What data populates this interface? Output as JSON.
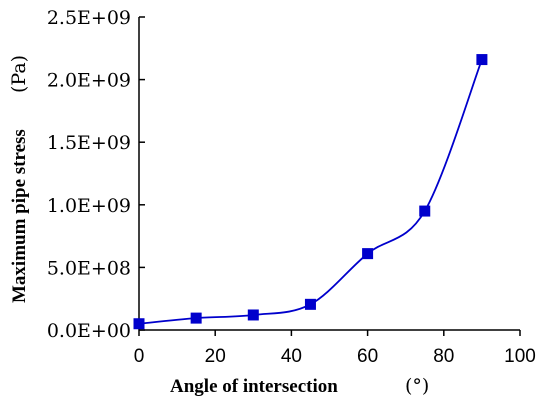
{
  "chart_data": {
    "type": "line",
    "title": "",
    "xlabel": "Angle of intersection",
    "xunit": "(°)",
    "ylabel": "Maximum pipe stress",
    "yunit": "(Pa)",
    "xlim": [
      0,
      100
    ],
    "ylim": [
      0,
      2500000000
    ],
    "x_ticks": [
      0,
      20,
      40,
      60,
      80,
      100
    ],
    "x_tick_labels": [
      "0",
      "20",
      "40",
      "60",
      "80",
      "100"
    ],
    "y_ticks": [
      0,
      500000000,
      1000000000,
      1500000000,
      2000000000,
      2500000000
    ],
    "y_tick_labels": [
      "0.0E+00",
      "5.0E+08",
      "1.0E+09",
      "1.5E+09",
      "2.0E+09",
      "2.5E+09"
    ],
    "grid": false,
    "legend": "none",
    "series": [
      {
        "color": "#0000cc",
        "marker": "square",
        "x": [
          0,
          15,
          30,
          45,
          60,
          75,
          90
        ],
        "y": [
          50000000,
          95000000,
          120000000,
          205000000,
          610000000,
          950000000,
          2160000000
        ]
      }
    ]
  }
}
